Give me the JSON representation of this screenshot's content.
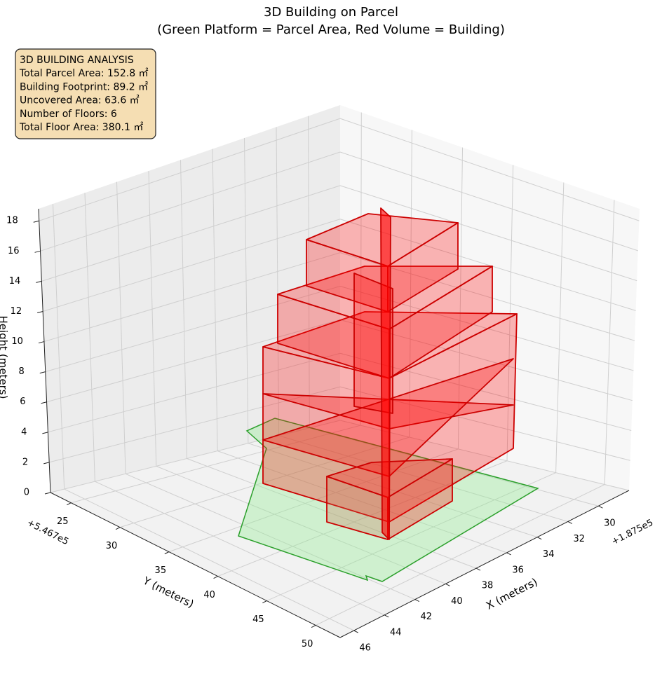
{
  "chart_data": {
    "type": "3d-polygons",
    "title": "3D Building on Parcel",
    "subtitle": "(Green Platform = Parcel Area, Red Volume = Building)",
    "annotation": [
      "3D BUILDING ANALYSIS",
      "Total Parcel Area: 152.8 ㎡",
      "Building Footprint: 89.2 ㎡",
      "Uncovered Area: 63.6 ㎡",
      "Number of Floors: 6",
      "Total Floor Area: 380.1 ㎡"
    ],
    "xlabel": "X (meters)",
    "ylabel": "Y (meters)",
    "zlabel": "Height (meters)",
    "x_offset": "+1.875e5",
    "y_offset": "+5.467e5",
    "xlim": [
      46.9,
      28.0
    ],
    "xticks": [
      30,
      32,
      34,
      36,
      38,
      40,
      42,
      44,
      46
    ],
    "ylim": [
      22.9,
      52.5
    ],
    "yticks": [
      25,
      30,
      35,
      40,
      45,
      50
    ],
    "zlim": [
      0,
      18.8
    ],
    "zticks": [
      0,
      2,
      4,
      6,
      8,
      10,
      12,
      14,
      16,
      18
    ],
    "grid": true
  }
}
